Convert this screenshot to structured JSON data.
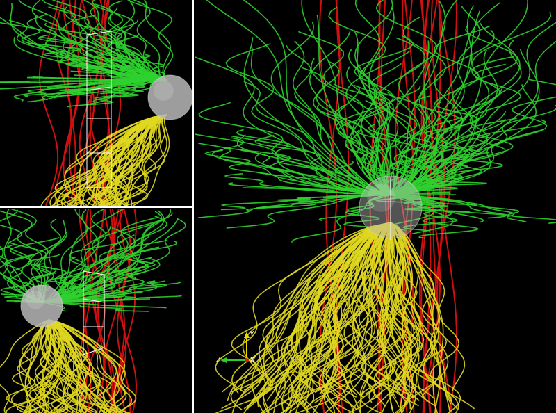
{
  "main_view": {
    "axes": {
      "y": "Y",
      "z": "Z",
      "x": "X"
    }
  }
}
